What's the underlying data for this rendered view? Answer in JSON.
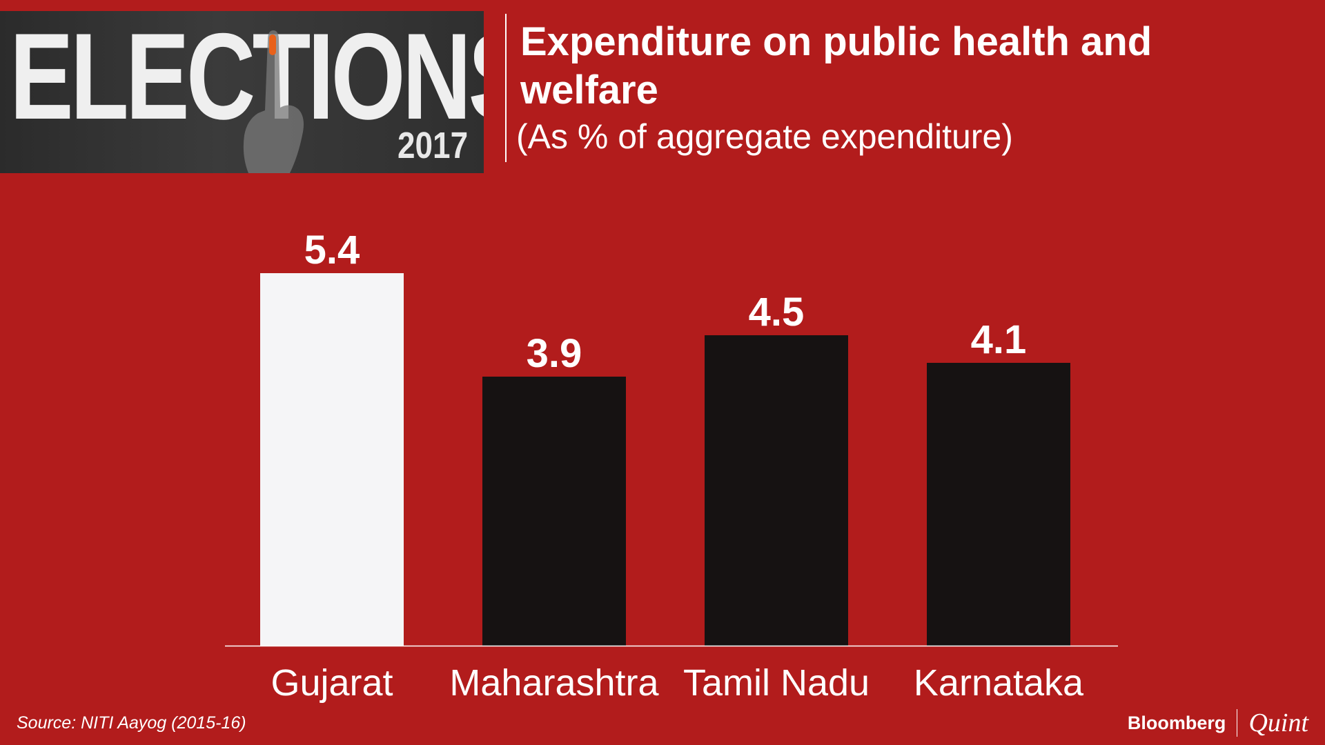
{
  "banner": {
    "word": "ELECTIONS",
    "year": "2017"
  },
  "header": {
    "title": "Expenditure on public health and welfare",
    "subtitle": "(As % of aggregate expenditure)"
  },
  "footer": {
    "source": "Source: NITI Aayog (2015-16)",
    "brand_primary": "Bloomberg",
    "brand_secondary": "Quint"
  },
  "colors": {
    "background": "#b21c1c",
    "highlight_bar": "#f5f5f7",
    "default_bar": "#161212",
    "text": "#ffffff"
  },
  "chart_data": {
    "type": "bar",
    "categories": [
      "Gujarat",
      "Maharashtra",
      "Tamil Nadu",
      "Karnataka"
    ],
    "values": [
      5.4,
      3.9,
      4.5,
      4.1
    ],
    "data_labels": [
      "5.4",
      "3.9",
      "4.5",
      "4.1"
    ],
    "highlight": "Gujarat",
    "title": "Expenditure on public health and welfare",
    "subtitle": "(As % of aggregate expenditure)",
    "xlabel": "",
    "ylabel": "",
    "ylim": [
      0,
      5.4
    ],
    "grid": false,
    "legend": "none"
  }
}
